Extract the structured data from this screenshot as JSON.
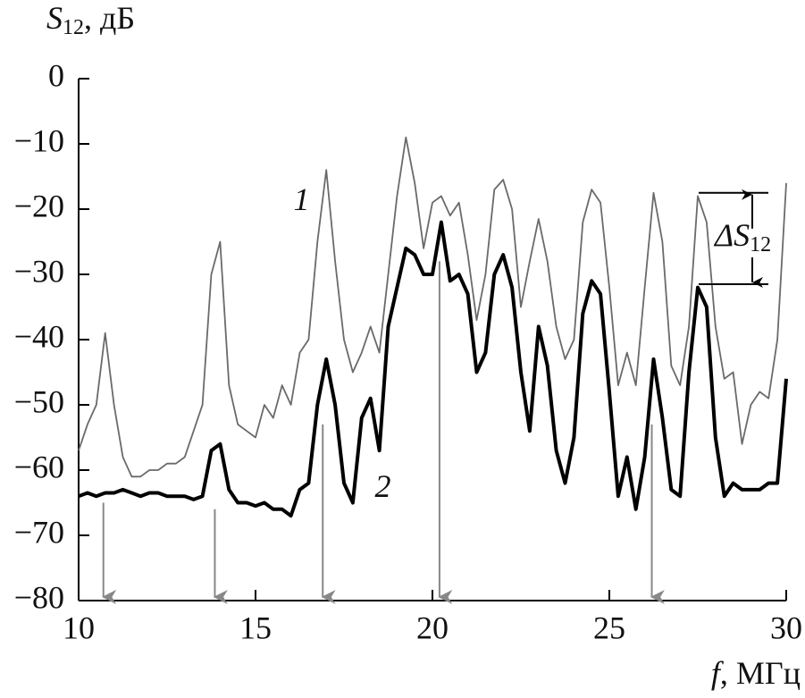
{
  "chart_data": {
    "type": "line",
    "ylabel": {
      "main": "S",
      "sub": "12",
      "rest": ", дБ"
    },
    "xlabel": {
      "main": "f",
      "rest": ", МГц"
    },
    "delta_label": {
      "main": "ΔS",
      "sub": "12"
    },
    "delta_range": [
      -17.5,
      -31.5
    ],
    "x": [
      10,
      10.25,
      10.5,
      10.75,
      11,
      11.25,
      11.5,
      11.75,
      12,
      12.25,
      12.5,
      12.75,
      13,
      13.25,
      13.5,
      13.75,
      14,
      14.25,
      14.5,
      14.75,
      15,
      15.25,
      15.5,
      15.75,
      16,
      16.25,
      16.5,
      16.75,
      17,
      17.25,
      17.5,
      17.75,
      18,
      18.25,
      18.5,
      18.75,
      19,
      19.25,
      19.5,
      19.75,
      20,
      20.25,
      20.5,
      20.75,
      21,
      21.25,
      21.5,
      21.75,
      22,
      22.25,
      22.5,
      22.75,
      23,
      23.25,
      23.5,
      23.75,
      24,
      24.25,
      24.5,
      24.75,
      25,
      25.25,
      25.5,
      25.75,
      26,
      26.25,
      26.5,
      26.75,
      27,
      27.25,
      27.5,
      27.75,
      28,
      28.25,
      28.5,
      28.75,
      29,
      29.25,
      29.5,
      29.75,
      30
    ],
    "series": [
      {
        "name": "1",
        "color": "#6a6a6a",
        "values": [
          -57,
          -53,
          -50,
          -39,
          -50,
          -58,
          -61,
          -61,
          -60,
          -60,
          -59,
          -59,
          -58,
          -54,
          -50,
          -30,
          -25,
          -47,
          -53,
          -54,
          -55,
          -50,
          -52,
          -47,
          -50,
          -42,
          -40,
          -25,
          -14,
          -28,
          -40,
          -45,
          -42,
          -38,
          -42,
          -30,
          -18,
          -9,
          -16,
          -26,
          -19,
          -18,
          -21,
          -19,
          -27,
          -37,
          -30,
          -17,
          -15.5,
          -20,
          -35,
          -28,
          -21.5,
          -28,
          -38,
          -43,
          -40,
          -22,
          -17,
          -19,
          -32,
          -47,
          -42,
          -47,
          -32,
          -17.5,
          -25,
          -44,
          -47,
          -38,
          -18,
          -22,
          -38,
          -46,
          -45,
          -56,
          -50,
          -48,
          -49,
          -40,
          -16
        ]
      },
      {
        "name": "2",
        "color": "#000000",
        "values": [
          -64,
          -63.5,
          -64,
          -63.5,
          -63.5,
          -63,
          -63.5,
          -64,
          -63.5,
          -63.5,
          -64,
          -64,
          -64,
          -64.5,
          -64,
          -57,
          -56,
          -63,
          -65,
          -65,
          -65.5,
          -65,
          -66,
          -66,
          -67,
          -63,
          -62,
          -50,
          -43,
          -50,
          -62,
          -65,
          -52,
          -49,
          -57,
          -38,
          -32,
          -26,
          -27,
          -30,
          -30,
          -22,
          -31,
          -30,
          -33,
          -45,
          -42,
          -30,
          -27,
          -32,
          -45,
          -54,
          -38,
          -44,
          -57,
          -62,
          -55,
          -36,
          -31,
          -33,
          -48,
          -64,
          -58,
          -66,
          -58,
          -43,
          -52,
          -63,
          -64,
          -45,
          -32,
          -35,
          -55,
          -64,
          -62,
          -63,
          -63,
          -63,
          -62,
          -62,
          -46
        ]
      }
    ],
    "arrows": {
      "x": [
        10.7,
        13.85,
        16.9,
        20.2,
        26.2
      ],
      "from": [
        -65,
        -66,
        -53,
        -28,
        -53
      ],
      "to": -80,
      "color": "#888888"
    },
    "xlim": [
      10,
      30
    ],
    "ylim": [
      -80,
      0
    ],
    "xticks": [
      10,
      15,
      20,
      25,
      30
    ],
    "yticks": [
      0,
      {
        "value": -10,
        "label": "−10"
      },
      {
        "value": -20,
        "label": "−20"
      },
      {
        "value": -30,
        "label": "−30"
      },
      {
        "value": -40,
        "label": "−40"
      },
      {
        "value": -50,
        "label": "−50"
      },
      {
        "value": -60,
        "label": "−60"
      },
      {
        "value": -70,
        "label": "−70"
      },
      {
        "value": -80,
        "label": "−80"
      }
    ],
    "grid": false
  }
}
